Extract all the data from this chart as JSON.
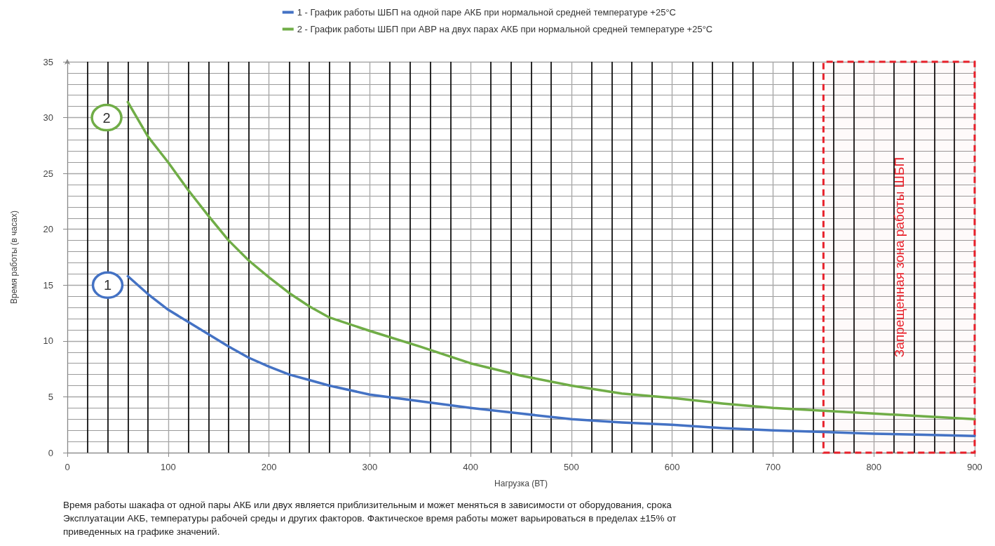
{
  "chart_data": {
    "type": "line",
    "xlabel": "Нагрузка (ВТ)",
    "ylabel": "Время работы (в часах)",
    "x": [
      60,
      80,
      100,
      120,
      140,
      160,
      180,
      200,
      220,
      240,
      260,
      300,
      350,
      400,
      450,
      500,
      550,
      600,
      650,
      700,
      750,
      800,
      850,
      900
    ],
    "series": [
      {
        "name": "1 - График работы ШБП на одной паре АКБ при нормальной средней температуре +25°C",
        "color": "#4472c4",
        "values": [
          15.8,
          14.2,
          12.8,
          11.7,
          10.6,
          9.5,
          8.5,
          7.7,
          7.0,
          6.5,
          6.0,
          5.2,
          4.6,
          4.0,
          3.5,
          3.0,
          2.7,
          2.5,
          2.2,
          2.0,
          1.85,
          1.7,
          1.6,
          1.5
        ]
      },
      {
        "name": "2 - График работы ШБП при АВР на двух парах АКБ при нормальной средней температуре +25°C",
        "color": "#70ad47",
        "values": [
          31.4,
          28.3,
          26.0,
          23.5,
          21.2,
          19.0,
          17.2,
          15.7,
          14.3,
          13.1,
          12.1,
          10.9,
          9.5,
          8.0,
          6.9,
          6.0,
          5.3,
          4.9,
          4.4,
          4.0,
          3.75,
          3.5,
          3.25,
          3.0
        ]
      }
    ],
    "xlim": [
      0,
      900
    ],
    "xticks": [
      0,
      100,
      200,
      300,
      400,
      500,
      600,
      700,
      800,
      900
    ],
    "ylim": [
      0,
      35
    ],
    "yticks": [
      0,
      5,
      10,
      15,
      20,
      25,
      30,
      35
    ],
    "bands": [
      {
        "axis": "x",
        "from": 750,
        "to": 900,
        "label": "Запрещенная зона работы ШБП",
        "color": "#e8202a"
      }
    ],
    "annotations": [
      {
        "text": "1",
        "x": 40,
        "y": 15
      },
      {
        "text": "2",
        "x": 39,
        "y": 30
      },
      "Время работы шакафа от одной пары АКБ или двух является приблизительным и может меняться в зависимости от оборудования, срока Эксплуатации АКБ, температуры рабочей среды и других факторов. Фактическое время работы может варьироваться в пределах ±15% от приведенных на графике значений."
    ],
    "grid": true,
    "legend": "top",
    "marker": "none",
    "line_style": "solid"
  }
}
